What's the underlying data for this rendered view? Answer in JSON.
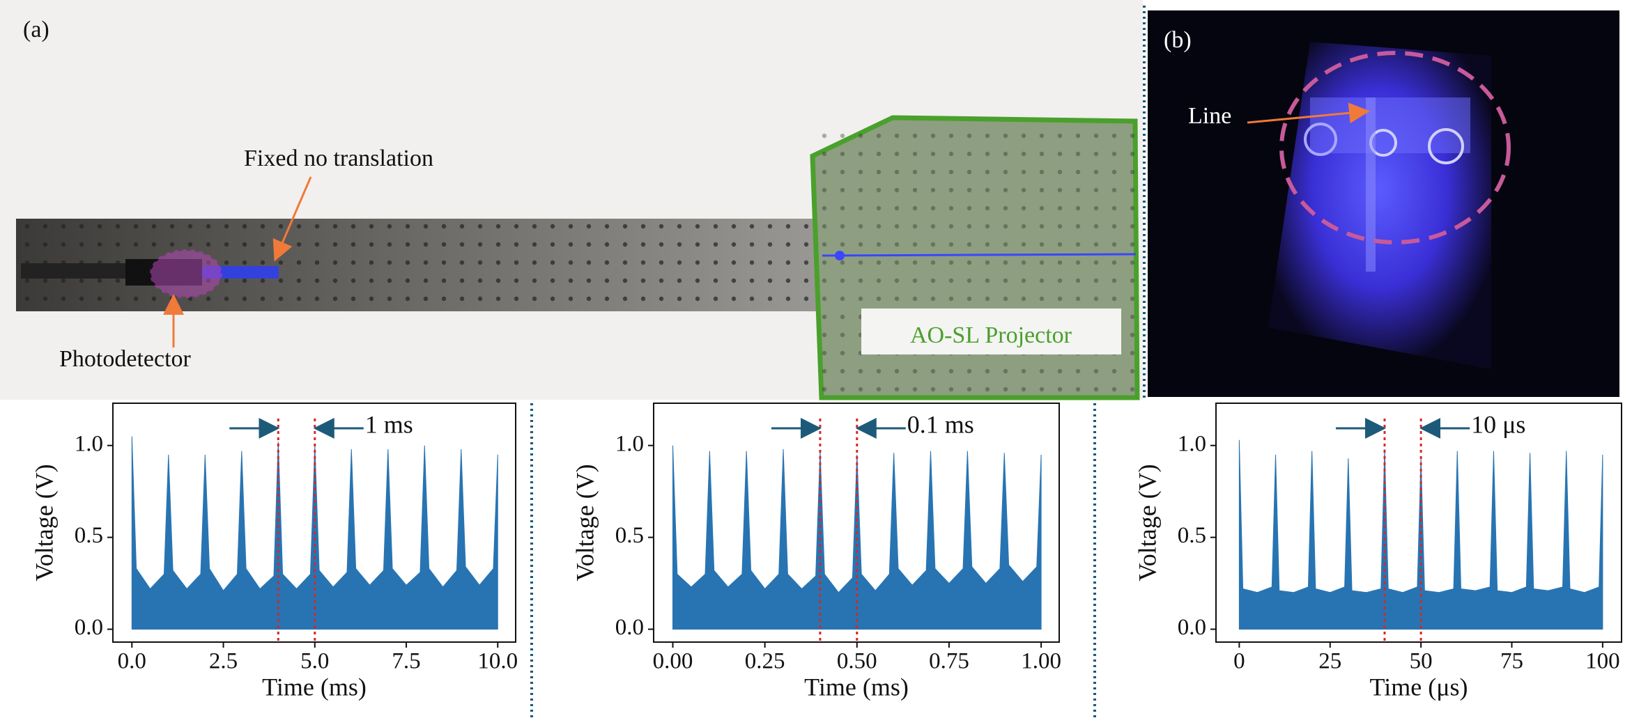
{
  "photos": {
    "panel_a_label": "(a)",
    "fixed_label": "Fixed no translation",
    "detector_label": "Photodetector",
    "projector_label": "AO-SL Projector",
    "panel_b_label": "(b)",
    "line_label": "Line"
  },
  "chart_data": [
    {
      "type": "area",
      "xlabel": "Time (ms)",
      "ylabel": "Voltage (V)",
      "color": "#2874b2",
      "marker_color": "#d62728",
      "annotation": "1 ms",
      "markers": [
        4,
        5
      ],
      "xlim": [
        -0.52,
        10.49
      ],
      "ylim": [
        -0.07,
        1.23
      ],
      "xticks": [
        {
          "value": 0,
          "label": "0.0"
        },
        {
          "value": 2.5,
          "label": "2.5"
        },
        {
          "value": 5,
          "label": "5.0"
        },
        {
          "value": 7.5,
          "label": "7.5"
        },
        {
          "value": 10,
          "label": "10.0"
        }
      ],
      "yticks": [
        {
          "value": 0,
          "label": "0.0"
        },
        0.5,
        {
          "value": 1,
          "label": "1.0"
        }
      ],
      "x": [
        0,
        0.12,
        0.5,
        0.88,
        1,
        1.12,
        1.5,
        1.88,
        2,
        2.12,
        2.5,
        2.88,
        3,
        3.12,
        3.5,
        3.88,
        4,
        4.12,
        4.5,
        4.88,
        5,
        5.12,
        5.5,
        5.88,
        6,
        6.12,
        6.5,
        6.88,
        7,
        7.12,
        7.5,
        7.88,
        8,
        8.12,
        8.5,
        8.88,
        9,
        9.12,
        9.5,
        9.88,
        10
      ],
      "values": [
        1.05,
        0.33,
        0.22,
        0.3,
        0.95,
        0.32,
        0.22,
        0.3,
        0.95,
        0.33,
        0.21,
        0.3,
        0.97,
        0.33,
        0.22,
        0.29,
        1.02,
        0.3,
        0.22,
        0.3,
        1.0,
        0.32,
        0.23,
        0.31,
        0.98,
        0.33,
        0.24,
        0.32,
        0.98,
        0.33,
        0.24,
        0.31,
        1.0,
        0.33,
        0.23,
        0.32,
        0.98,
        0.34,
        0.24,
        0.33,
        0.95
      ]
    },
    {
      "type": "area",
      "xlabel": "Time (ms)",
      "ylabel": "Voltage (V)",
      "color": "#2874b2",
      "marker_color": "#d62728",
      "annotation": "0.1 ms",
      "markers": [
        0.4,
        0.5
      ],
      "xlim": [
        -0.052,
        1.049
      ],
      "ylim": [
        -0.07,
        1.23
      ],
      "xticks": [
        {
          "value": 0,
          "label": "0.00"
        },
        0.25,
        {
          "value": 0.5,
          "label": "0.50"
        },
        0.75,
        {
          "value": 1,
          "label": "1.00"
        }
      ],
      "yticks": [
        {
          "value": 0,
          "label": "0.0"
        },
        0.5,
        {
          "value": 1,
          "label": "1.0"
        }
      ],
      "x": [
        0,
        0.012,
        0.05,
        0.088,
        0.1,
        0.112,
        0.15,
        0.188,
        0.2,
        0.212,
        0.25,
        0.288,
        0.3,
        0.312,
        0.35,
        0.388,
        0.4,
        0.412,
        0.45,
        0.488,
        0.5,
        0.512,
        0.55,
        0.588,
        0.6,
        0.612,
        0.65,
        0.688,
        0.7,
        0.712,
        0.75,
        0.788,
        0.8,
        0.812,
        0.85,
        0.888,
        0.9,
        0.912,
        0.95,
        0.988,
        1
      ],
      "values": [
        1.0,
        0.3,
        0.23,
        0.3,
        0.97,
        0.32,
        0.23,
        0.3,
        0.97,
        0.32,
        0.22,
        0.3,
        0.98,
        0.3,
        0.22,
        0.29,
        0.97,
        0.3,
        0.2,
        0.28,
        0.95,
        0.3,
        0.21,
        0.3,
        0.96,
        0.33,
        0.24,
        0.32,
        0.97,
        0.33,
        0.25,
        0.33,
        0.97,
        0.34,
        0.25,
        0.33,
        0.96,
        0.35,
        0.26,
        0.34,
        0.95
      ]
    },
    {
      "type": "area",
      "xlabel": "Time (μs)",
      "ylabel": "Voltage (V)",
      "color": "#2874b2",
      "marker_color": "#d62728",
      "annotation": "10 μs",
      "markers": [
        40,
        50
      ],
      "xlim": [
        -6.4,
        105.2
      ],
      "ylim": [
        -0.07,
        1.23
      ],
      "xticks": [
        0,
        25,
        50,
        75,
        100
      ],
      "yticks": [
        {
          "value": 0,
          "label": "0.0"
        },
        0.5,
        {
          "value": 1,
          "label": "1.0"
        }
      ],
      "x": [
        0,
        1,
        5,
        9,
        10,
        11,
        15,
        19,
        20,
        21,
        25,
        29,
        30,
        31,
        35,
        39,
        40,
        41,
        45,
        49,
        50,
        51,
        55,
        59,
        60,
        61,
        65,
        69,
        70,
        71,
        75,
        79,
        80,
        81,
        85,
        89,
        90,
        91,
        95,
        99,
        100
      ],
      "values": [
        1.03,
        0.22,
        0.2,
        0.23,
        0.95,
        0.21,
        0.2,
        0.23,
        0.97,
        0.22,
        0.2,
        0.23,
        0.93,
        0.21,
        0.2,
        0.22,
        0.98,
        0.22,
        0.2,
        0.23,
        0.93,
        0.21,
        0.2,
        0.22,
        0.97,
        0.22,
        0.21,
        0.23,
        0.97,
        0.21,
        0.2,
        0.23,
        0.96,
        0.22,
        0.21,
        0.23,
        0.97,
        0.22,
        0.2,
        0.23,
        0.95
      ]
    }
  ]
}
